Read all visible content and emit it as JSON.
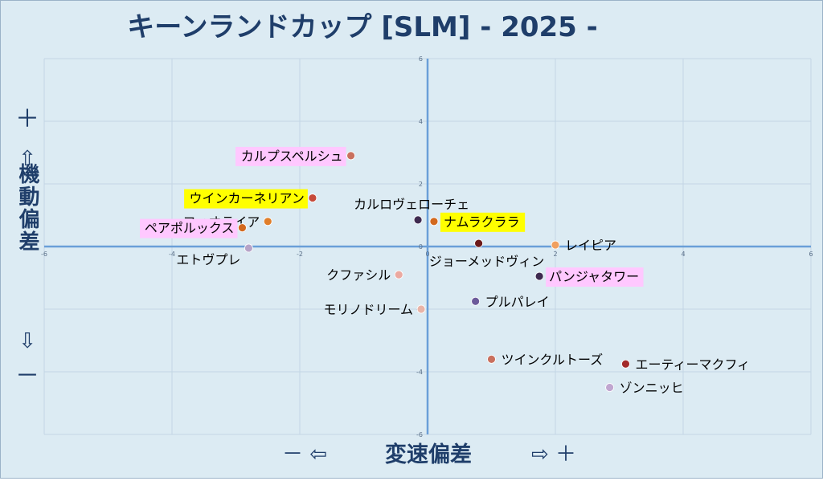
{
  "chart_data": {
    "type": "scatter",
    "title": "キーンランドカップ [SLM]  - 2025 -",
    "xlabel": "変速偏差",
    "x_neg_marks": "－ ⇦",
    "x_pos_marks": "⇨ ＋",
    "ylabel": "機動偏差",
    "y_pos_marks": [
      "＋",
      "⇧"
    ],
    "y_neg_marks": [
      "⇩",
      "－"
    ],
    "xlim": [
      -6,
      6
    ],
    "ylim": [
      -6,
      6
    ],
    "x_ticks": [
      "-6",
      "-4",
      "-2",
      "0",
      "2",
      "4",
      "6"
    ],
    "y_ticks": [
      "6",
      "4",
      "2",
      "0",
      "-2",
      "-4",
      "-6"
    ],
    "grid": true,
    "points": [
      {
        "name": "カルプスペルシュ",
        "x": -1.2,
        "y": 2.9,
        "color": "#c9705e",
        "highlight": "#ffc8ff",
        "label_side": "left"
      },
      {
        "name": "ウインカーネリアン",
        "x": -1.8,
        "y": 1.55,
        "color": "#c64a3a",
        "highlight": "#ffff00",
        "label_side": "left"
      },
      {
        "name": "フィオライア",
        "x": -2.5,
        "y": 0.8,
        "color": "#e07e2a",
        "highlight": null,
        "label_side": "left"
      },
      {
        "name": "ペアポルックス",
        "x": -2.9,
        "y": 0.6,
        "color": "#d2691e",
        "highlight": "#ffc8ff",
        "label_side": "left"
      },
      {
        "name": "エトヴプレ",
        "x": -2.8,
        "y": -0.05,
        "color": "#b6a4c8",
        "highlight": null,
        "label_side": "below-left"
      },
      {
        "name": "カルロヴェローチェ",
        "x": -0.15,
        "y": 0.85,
        "color": "#3e2a50",
        "highlight": null,
        "label_side": "above"
      },
      {
        "name": "ナムラクララ",
        "x": 0.1,
        "y": 0.8,
        "color": "#d2691e",
        "highlight": "#ffff00",
        "label_side": "right"
      },
      {
        "name": "ジョーメッドヴィン",
        "x": 0.8,
        "y": 0.1,
        "color": "#6b1a1a",
        "highlight": null,
        "label_side": "below"
      },
      {
        "name": "レイピア",
        "x": 2.0,
        "y": 0.05,
        "color": "#f0a060",
        "highlight": null,
        "label_side": "right"
      },
      {
        "name": "クファシル",
        "x": -0.45,
        "y": -0.9,
        "color": "#eba9a0",
        "highlight": null,
        "label_side": "left"
      },
      {
        "name": "パンジャタワー",
        "x": 1.75,
        "y": -0.95,
        "color": "#3e2a50",
        "highlight": "#ffc8ff",
        "label_side": "right"
      },
      {
        "name": "プルパレイ",
        "x": 0.75,
        "y": -1.75,
        "color": "#6b5a9a",
        "highlight": null,
        "label_side": "right"
      },
      {
        "name": "モリノドリーム",
        "x": -0.1,
        "y": -2.0,
        "color": "#e8b4a8",
        "highlight": null,
        "label_side": "left"
      },
      {
        "name": "ツインクルトーズ",
        "x": 1.0,
        "y": -3.6,
        "color": "#c9705e",
        "highlight": null,
        "label_side": "right"
      },
      {
        "name": "エーティーマクフィ",
        "x": 3.1,
        "y": -3.75,
        "color": "#a32a2a",
        "highlight": null,
        "label_side": "right"
      },
      {
        "name": "ゾンニッヒ",
        "x": 2.85,
        "y": -4.5,
        "color": "#c0a6d0",
        "highlight": null,
        "label_side": "right"
      }
    ],
    "colors": {
      "axis": "#6a9fd8",
      "grid": "#c3d6e4",
      "text": "#1f3e6a",
      "label": "#000000"
    }
  }
}
